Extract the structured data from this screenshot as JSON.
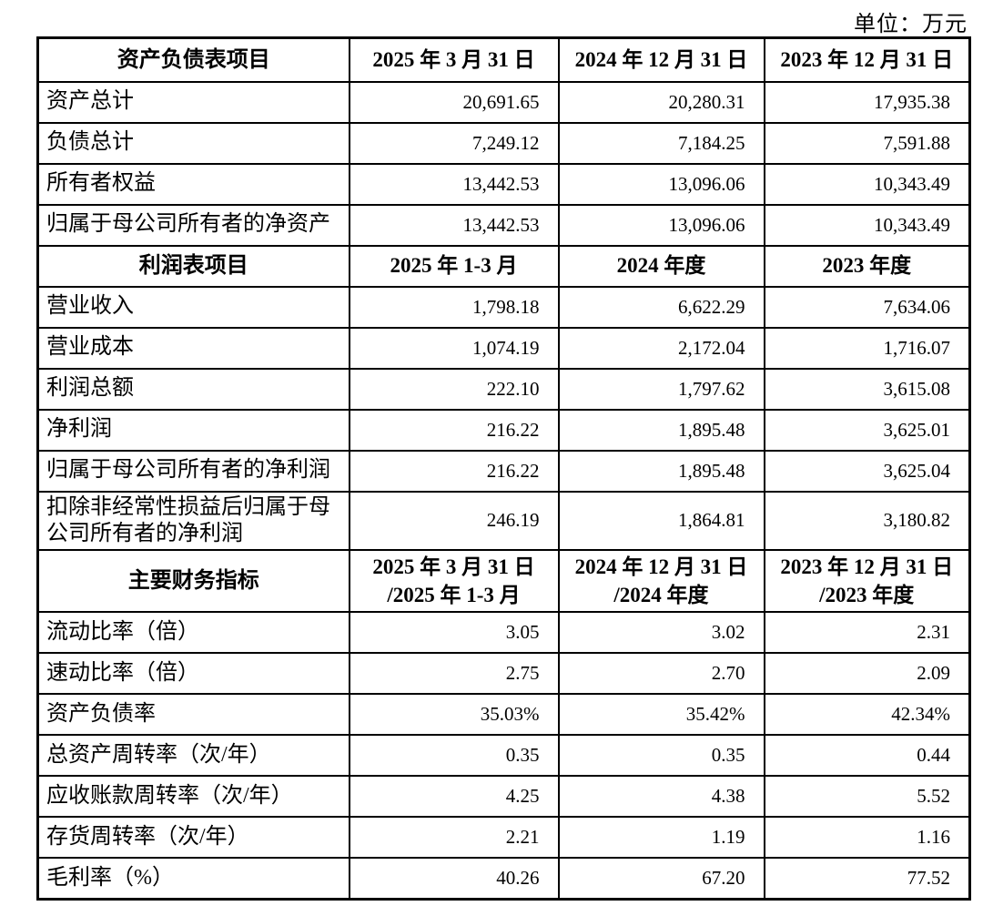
{
  "unit_label": "单位：万元",
  "table": {
    "columns_width": [
      342,
      230,
      226,
      226
    ],
    "sections": [
      {
        "header": {
          "label": "资产负债表项目",
          "cols": [
            "2025 年 3 月 31 日",
            "2024 年 12 月 31 日",
            "2023 年 12 月 31 日"
          ]
        },
        "rows": [
          {
            "label": "资产总计",
            "values": [
              "20,691.65",
              "20,280.31",
              "17,935.38"
            ]
          },
          {
            "label": "负债总计",
            "values": [
              "7,249.12",
              "7,184.25",
              "7,591.88"
            ]
          },
          {
            "label": "所有者权益",
            "values": [
              "13,442.53",
              "13,096.06",
              "10,343.49"
            ]
          },
          {
            "label": "归属于母公司所有者的净资产",
            "values": [
              "13,442.53",
              "13,096.06",
              "10,343.49"
            ]
          }
        ]
      },
      {
        "header": {
          "label": "利润表项目",
          "cols": [
            "2025 年 1-3 月",
            "2024 年度",
            "2023 年度"
          ]
        },
        "rows": [
          {
            "label": "营业收入",
            "values": [
              "1,798.18",
              "6,622.29",
              "7,634.06"
            ]
          },
          {
            "label": "营业成本",
            "values": [
              "1,074.19",
              "2,172.04",
              "1,716.07"
            ]
          },
          {
            "label": "利润总额",
            "values": [
              "222.10",
              "1,797.62",
              "3,615.08"
            ]
          },
          {
            "label": "净利润",
            "values": [
              "216.22",
              "1,895.48",
              "3,625.01"
            ]
          },
          {
            "label": "归属于母公司所有者的净利润",
            "values": [
              "216.22",
              "1,895.48",
              "3,625.04"
            ]
          },
          {
            "label": "扣除非经常性损益后归属于母公司所有者的净利润",
            "tall": true,
            "values": [
              "246.19",
              "1,864.81",
              "3,180.82"
            ]
          }
        ]
      },
      {
        "header": {
          "tall": true,
          "label": "主要财务指标",
          "cols": [
            "2025 年 3 月 31 日\n/2025 年 1-3 月",
            "2024 年 12 月 31 日\n/2024 年度",
            "2023 年 12 月 31 日\n/2023 年度"
          ]
        },
        "rows": [
          {
            "label": "流动比率（倍）",
            "values": [
              "3.05",
              "3.02",
              "2.31"
            ]
          },
          {
            "label": "速动比率（倍）",
            "values": [
              "2.75",
              "2.70",
              "2.09"
            ]
          },
          {
            "label": "资产负债率",
            "values": [
              "35.03%",
              "35.42%",
              "42.34%"
            ]
          },
          {
            "label": "总资产周转率（次/年）",
            "values": [
              "0.35",
              "0.35",
              "0.44"
            ]
          },
          {
            "label": "应收账款周转率（次/年）",
            "values": [
              "4.25",
              "4.38",
              "5.52"
            ]
          },
          {
            "label": "存货周转率（次/年）",
            "values": [
              "2.21",
              "1.19",
              "1.16"
            ]
          },
          {
            "label": "毛利率（%）",
            "values": [
              "40.26",
              "67.20",
              "77.52"
            ]
          }
        ]
      }
    ]
  }
}
